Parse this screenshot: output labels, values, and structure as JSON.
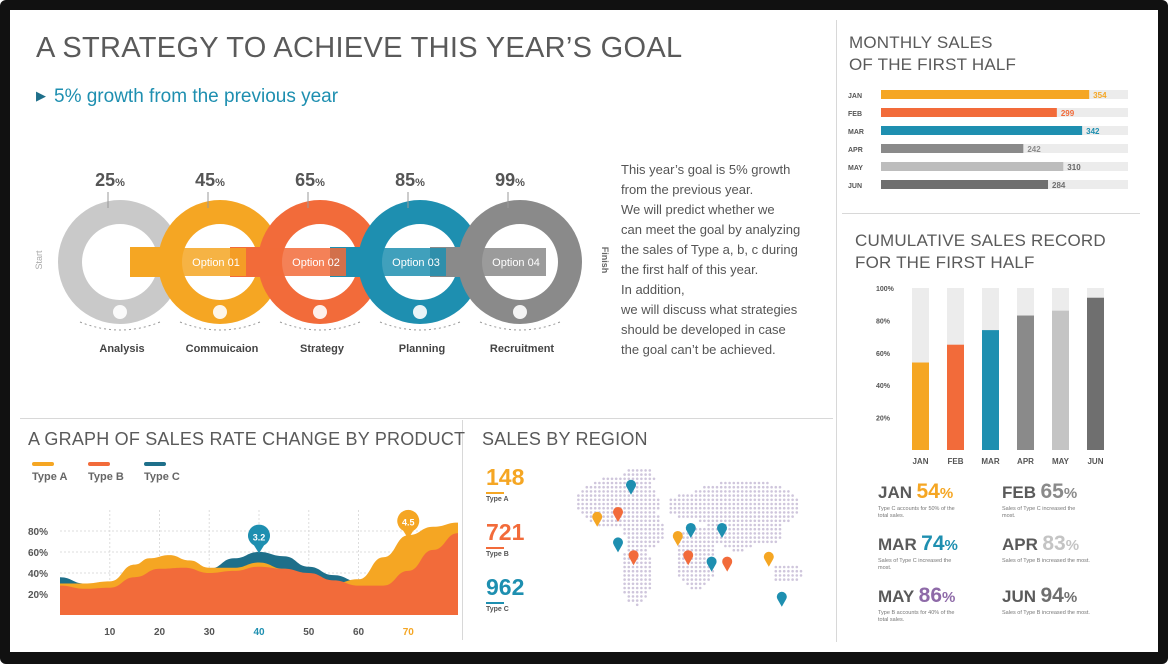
{
  "header": {
    "title": "A STRATEGY TO ACHIEVE THIS YEAR’S GOAL",
    "subtitle_arrow": "▶",
    "subtitle": "5% growth from the previous year"
  },
  "process": {
    "start_label": "Start",
    "finish_label": "Finish",
    "stages": [
      {
        "percent": "25",
        "unit": "%",
        "option": "",
        "label": "Analysis",
        "icon": "money-bag-icon",
        "color": "#c9c9c9"
      },
      {
        "percent": "45",
        "unit": "%",
        "option": "Option 01",
        "label": "Commuicaion",
        "icon": "flask-icon",
        "color": "#f5a623"
      },
      {
        "percent": "65",
        "unit": "%",
        "option": "Option 02",
        "label": "Strategy",
        "icon": "clock-icon",
        "color": "#f26b3a"
      },
      {
        "percent": "85",
        "unit": "%",
        "option": "Option 03",
        "label": "Planning",
        "icon": "database-icon",
        "color": "#1e8fb0"
      },
      {
        "percent": "99",
        "unit": "%",
        "option": "Option 04",
        "label": "Recruitment",
        "icon": "lightbulb-icon",
        "color": "#8a8a8a"
      }
    ]
  },
  "description": {
    "lines": [
      "This year’s goal is 5% growth",
      "from the previous year.",
      "We will predict whether we",
      "can meet the goal by analyzing",
      "the sales of Type a, b, c during",
      "the first half of this year.",
      "In addition,",
      "we will discuss what strategies",
      "should be developed in case",
      "the goal can’t be achieved."
    ]
  },
  "sales_rate": {
    "title": "A GRAPH OF SALES RATE CHANGE BY PRODUCT",
    "legend": [
      {
        "name": "Type A",
        "color": "#f5a623"
      },
      {
        "name": "Type B",
        "color": "#f26b3a"
      },
      {
        "name": "Type C",
        "color": "#1e6f8a"
      }
    ],
    "y_ticks": [
      "80%",
      "60%",
      "40%",
      "20%"
    ],
    "x_ticks": [
      "10",
      "20",
      "30",
      "40",
      "50",
      "60",
      "70"
    ],
    "highlight_x": {
      "40": "#1e8fb0",
      "70": "#f5a623"
    },
    "markers": [
      {
        "x": 40,
        "y": 72,
        "label": "3.2",
        "color": "#1e8fb0"
      },
      {
        "x": 70,
        "y": 86,
        "label": "4.5",
        "color": "#f5a623"
      }
    ]
  },
  "chart_data": [
    {
      "type": "area",
      "title": "A GRAPH OF SALES RATE CHANGE BY PRODUCT",
      "xlabel": "",
      "ylabel": "",
      "ylim": [
        0,
        100
      ],
      "xlim": [
        0,
        80
      ],
      "series": [
        {
          "name": "Type A",
          "x": [
            0,
            5,
            10,
            15,
            18,
            22,
            26,
            30,
            35,
            40,
            45,
            50,
            55,
            60,
            65,
            70,
            75,
            80
          ],
          "values": [
            30,
            30,
            32,
            48,
            54,
            57,
            52,
            45,
            45,
            50,
            44,
            34,
            30,
            34,
            55,
            76,
            84,
            88
          ]
        },
        {
          "name": "Type B",
          "x": [
            0,
            5,
            10,
            15,
            20,
            25,
            30,
            35,
            40,
            45,
            50,
            55,
            60,
            65,
            70,
            75,
            80
          ],
          "values": [
            28,
            25,
            26,
            36,
            44,
            45,
            40,
            42,
            46,
            44,
            40,
            33,
            28,
            28,
            42,
            62,
            78
          ]
        },
        {
          "name": "Type C",
          "x": [
            0,
            5,
            10,
            15,
            20,
            25,
            30,
            35,
            40,
            45,
            50,
            55,
            60,
            65,
            70,
            75,
            80
          ],
          "values": [
            36,
            30,
            26,
            28,
            33,
            40,
            44,
            54,
            60,
            56,
            46,
            38,
            32,
            34,
            40,
            48,
            56
          ]
        }
      ]
    },
    {
      "type": "bar",
      "title": "MONTHLY SALES OF THE FIRST HALF",
      "categories": [
        "JAN",
        "FEB",
        "MAR",
        "APR",
        "MAY",
        "JUN"
      ],
      "values": [
        354,
        299,
        342,
        242,
        310,
        284
      ],
      "xlim": [
        0,
        420
      ]
    },
    {
      "type": "bar",
      "title": "CUMULATIVE SALES RECORD FOR THE FIRST HALF",
      "categories": [
        "JAN",
        "FEB",
        "MAR",
        "APR",
        "MAY",
        "JUN"
      ],
      "values": [
        54,
        65,
        74,
        83,
        86,
        94
      ],
      "ylim": [
        0,
        100
      ],
      "y_ticks": [
        "100%",
        "80%",
        "60%",
        "40%",
        "20%"
      ]
    }
  ],
  "monthly_sales": {
    "title_lines": [
      "MONTHLY SALES",
      "OF THE FIRST HALF"
    ],
    "months": [
      "JAN",
      "FEB",
      "MAR",
      "APR",
      "MAY",
      "JUN"
    ],
    "values": [
      "354",
      "299",
      "342",
      "242",
      "310",
      "284"
    ],
    "colors": [
      "#f5a623",
      "#f26b3a",
      "#1e8fb0",
      "#8a8a8a",
      "#bdbdbd",
      "#6f6f6f"
    ],
    "track_color": "#ececec"
  },
  "cumulative": {
    "title_lines": [
      "CUMULATIVE SALES RECORD",
      "FOR THE FIRST HALF"
    ],
    "colors": [
      "#f5a623",
      "#f26b3a",
      "#1e8fb0",
      "#8a8a8a",
      "#c4c4c4",
      "#6f6f6f"
    ],
    "stats": [
      {
        "month": "JAN",
        "percent": "54",
        "unit": "%",
        "color": "#f5a623",
        "note": "Type C accounts for 50% of the total sales."
      },
      {
        "month": "FEB",
        "percent": "65",
        "unit": "%",
        "color": "#8a8a8a",
        "note": "Sales of Type C increased the most."
      },
      {
        "month": "MAR",
        "percent": "74",
        "unit": "%",
        "color": "#1e8fb0",
        "note": "Sales of Type C increased the most."
      },
      {
        "month": "APR",
        "percent": "83",
        "unit": "%",
        "color": "#c4c4c4",
        "note": "Sales of Type B increased the most."
      },
      {
        "month": "MAY",
        "percent": "86",
        "unit": "%",
        "color": "#8e6aa8",
        "note": "Type B accounts for 40% of the total sales."
      },
      {
        "month": "JUN",
        "percent": "94",
        "unit": "%",
        "color": "#6f6f6f",
        "note": "Sales of Type B increased the most."
      }
    ]
  },
  "region": {
    "title": "SALES BY REGION",
    "stats": [
      {
        "value": "148",
        "label": "Type A",
        "color": "#f5a623"
      },
      {
        "value": "721",
        "label": "Type B",
        "color": "#f26b3a"
      },
      {
        "value": "962",
        "label": "Type C",
        "color": "#1e8fb0"
      }
    ],
    "pin_colors": [
      "#1e8fb0",
      "#f5a623",
      "#f26b3a"
    ],
    "dot_color": "#cfc6dc"
  }
}
